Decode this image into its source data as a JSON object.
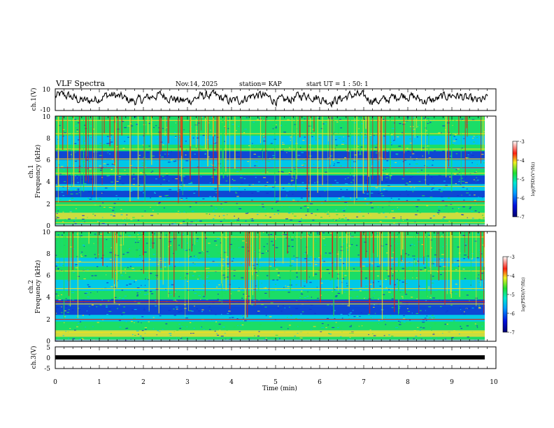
{
  "header": {
    "title": "VLF Spectra",
    "date": "Nov.14, 2025",
    "station": "station= KAP",
    "start": "start  UT =   1 : 50: 1"
  },
  "colors": {
    "blue": "#1030d0",
    "cyan": "#00c8e8",
    "green": "#20e050",
    "yellow": "#f0e020",
    "red": "#e02010"
  },
  "chart_data": [
    {
      "type": "line",
      "name": "ch1-voltage",
      "ylabel": "ch.1(V)",
      "ylim": [
        -10,
        10
      ],
      "yticks": [
        "10",
        "-10"
      ],
      "xlim": [
        0,
        10
      ]
    },
    {
      "type": "heatmap",
      "name": "ch1-spectrogram",
      "ylabel_line1": "ch.1",
      "ylabel_line2": "Frequency (kHz)",
      "ylim": [
        0,
        10
      ],
      "yticks": [
        "0",
        "2",
        "4",
        "6",
        "8",
        "10"
      ],
      "xlim": [
        0,
        10
      ],
      "colorbar": {
        "label": "log(PSD)(V²/Hz)",
        "range": [
          -7,
          -3
        ],
        "ticks": [
          "-3",
          "-4",
          "-5",
          "-6",
          "-7"
        ]
      }
    },
    {
      "type": "heatmap",
      "name": "ch2-spectrogram",
      "ylabel_line1": "ch.2",
      "ylabel_line2": "Frequency (kHz)",
      "ylim": [
        0,
        10
      ],
      "yticks": [
        "0",
        "2",
        "4",
        "6",
        "8",
        "10"
      ],
      "xlim": [
        0,
        10
      ],
      "colorbar": {
        "label": "log(PSD)(V²/Hz)",
        "range": [
          -7,
          -3
        ],
        "ticks": [
          "-3",
          "-4",
          "-5",
          "-6",
          "-7"
        ]
      }
    },
    {
      "type": "line",
      "name": "ch3-voltage",
      "ylabel": "ch.3(V)",
      "ylim": [
        -5,
        5
      ],
      "yticks": [
        "5",
        "0",
        "-5"
      ],
      "xlim": [
        0,
        10
      ],
      "level": 0
    }
  ],
  "xaxis": {
    "label": "Time (min)",
    "ticks": [
      "0",
      "1",
      "2",
      "3",
      "4",
      "5",
      "6",
      "7",
      "8",
      "9",
      "10"
    ]
  }
}
